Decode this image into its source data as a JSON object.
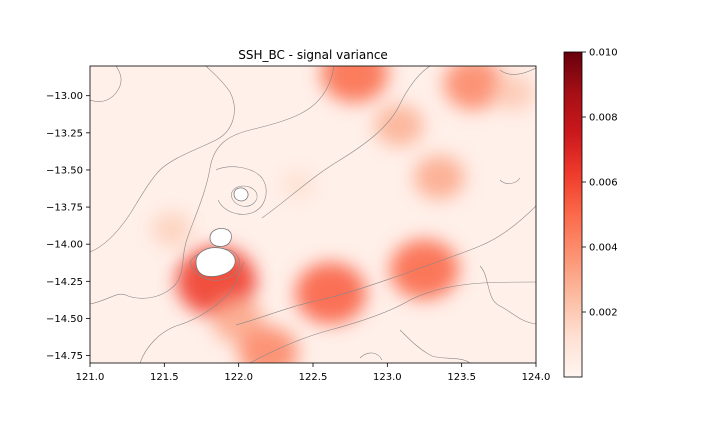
{
  "chart_data": {
    "type": "heatmap",
    "title": "SSH_BC - signal variance",
    "xlabel": "",
    "ylabel": "",
    "xlim": [
      121.0,
      124.0
    ],
    "ylim": [
      -14.8,
      -12.8
    ],
    "x_ticks": [
      121.0,
      121.5,
      122.0,
      122.5,
      123.0,
      123.5,
      124.0
    ],
    "x_tick_labels": [
      "121.0",
      "121.5",
      "122.0",
      "122.5",
      "123.0",
      "123.5",
      "124.0"
    ],
    "y_ticks": [
      -13.0,
      -13.25,
      -13.5,
      -13.75,
      -14.0,
      -14.25,
      -14.5,
      -14.75
    ],
    "y_tick_labels": [
      "−13.00",
      "−13.25",
      "−13.50",
      "−13.75",
      "−14.00",
      "−14.25",
      "−14.50",
      "−14.75"
    ],
    "colormap": "Reds",
    "colorbar": {
      "range": [
        0.0,
        0.01
      ],
      "ticks": [
        0.002,
        0.004,
        0.006,
        0.008,
        0.01
      ],
      "tick_labels": [
        "0.002",
        "0.004",
        "0.006",
        "0.008",
        "0.010"
      ]
    },
    "grid": false,
    "hotspots": [
      {
        "lon": 121.85,
        "lat": -14.25,
        "value": 0.0062
      },
      {
        "lon": 122.62,
        "lat": -14.33,
        "value": 0.0052
      },
      {
        "lon": 123.25,
        "lat": -14.17,
        "value": 0.005
      },
      {
        "lon": 122.78,
        "lat": -12.85,
        "value": 0.0048
      },
      {
        "lon": 123.58,
        "lat": -12.92,
        "value": 0.004
      },
      {
        "lon": 123.35,
        "lat": -13.55,
        "value": 0.003
      },
      {
        "lon": 123.08,
        "lat": -13.2,
        "value": 0.0028
      },
      {
        "lon": 122.0,
        "lat": -14.52,
        "value": 0.003
      },
      {
        "lon": 122.2,
        "lat": -14.73,
        "value": 0.004
      },
      {
        "lon": 121.55,
        "lat": -13.9,
        "value": 0.0018
      },
      {
        "lon": 122.4,
        "lat": -13.6,
        "value": 0.0012
      },
      {
        "lon": 123.85,
        "lat": -12.98,
        "value": 0.002
      }
    ],
    "islands": [
      {
        "lon": 121.83,
        "lat": -14.12
      },
      {
        "lon": 121.87,
        "lat": -13.94
      },
      {
        "lon": 122.0,
        "lat": -13.66
      }
    ]
  }
}
